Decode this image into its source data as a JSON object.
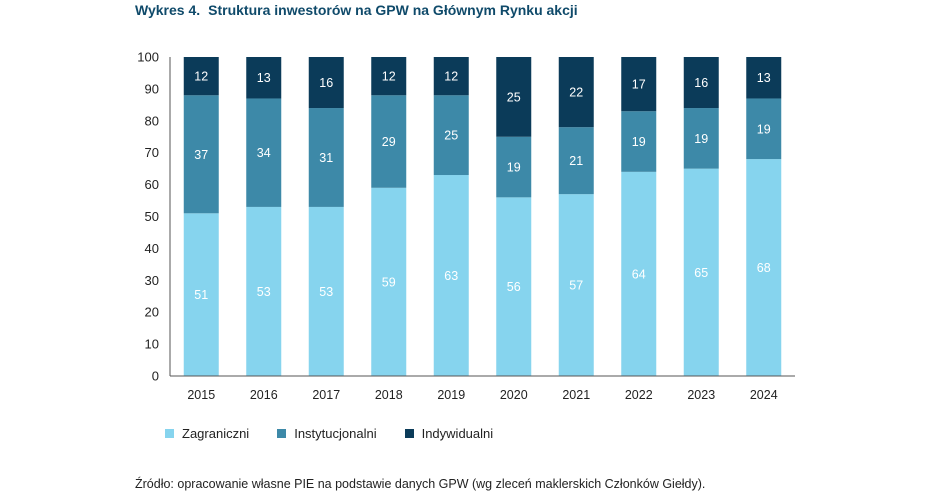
{
  "figure": {
    "number": "Wykres 4.",
    "title": "Struktura inwestorów na GPW na Głównym Rynku akcji",
    "source": "Źródło: opracowanie własne PIE na podstawie danych GPW (wg zleceń maklerskich Członków Giełdy)."
  },
  "chart_data": {
    "type": "bar",
    "stacked": true,
    "categories": [
      "2015",
      "2016",
      "2017",
      "2018",
      "2019",
      "2020",
      "2021",
      "2022",
      "2023",
      "2024"
    ],
    "series": [
      {
        "name": "Zagraniczni",
        "color": "#86d4ee",
        "values": [
          51,
          53,
          53,
          59,
          63,
          56,
          57,
          64,
          65,
          68
        ]
      },
      {
        "name": "Instytucjonalni",
        "color": "#3d89a8",
        "values": [
          37,
          34,
          31,
          29,
          25,
          19,
          21,
          19,
          19,
          19
        ]
      },
      {
        "name": "Indywidualni",
        "color": "#0b3b59",
        "values": [
          12,
          13,
          16,
          12,
          12,
          25,
          22,
          17,
          16,
          13
        ]
      }
    ],
    "ylim": [
      0,
      100
    ],
    "yticks": [
      0,
      10,
      20,
      30,
      40,
      50,
      60,
      70,
      80,
      90,
      100
    ],
    "legend_position": "bottom-left",
    "grid": false
  }
}
